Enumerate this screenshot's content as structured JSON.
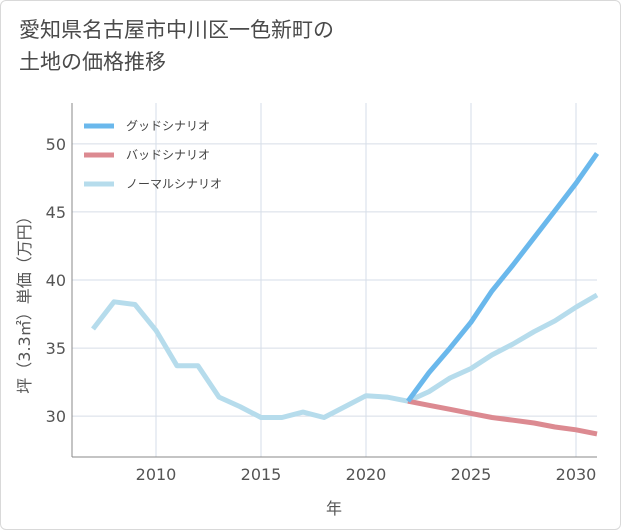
{
  "title_line1": "愛知県名古屋市中川区一色新町の",
  "title_line2": "土地の価格推移",
  "chart_data": {
    "type": "line",
    "xlabel": "年",
    "ylabel": "坪（3.3㎡）単価（万円）",
    "xlim": [
      2006,
      2031
    ],
    "ylim": [
      27,
      53
    ],
    "x_ticks": [
      2010,
      2015,
      2020,
      2025,
      2030
    ],
    "y_ticks": [
      30,
      35,
      40,
      45,
      50
    ],
    "grid": true,
    "legend_position": "top-left",
    "series": [
      {
        "name": "グッドシナリオ",
        "color": "#6ab8ec",
        "x": [
          2022,
          2023,
          2024,
          2025,
          2026,
          2027,
          2028,
          2029,
          2030,
          2031
        ],
        "values": [
          31.1,
          33.2,
          35.0,
          36.9,
          39.2,
          41.1,
          43.1,
          45.1,
          47.1,
          49.3
        ]
      },
      {
        "name": "バッドシナリオ",
        "color": "#dc8a91",
        "x": [
          2022,
          2023,
          2024,
          2025,
          2026,
          2027,
          2028,
          2029,
          2030,
          2031
        ],
        "values": [
          31.1,
          30.8,
          30.5,
          30.2,
          29.9,
          29.7,
          29.5,
          29.2,
          29.0,
          28.7
        ]
      },
      {
        "name": "ノーマルシナリオ",
        "color": "#b6dcec",
        "x": [
          2007,
          2008,
          2009,
          2010,
          2011,
          2012,
          2013,
          2014,
          2015,
          2016,
          2017,
          2018,
          2019,
          2020,
          2021,
          2022,
          2023,
          2024,
          2025,
          2026,
          2027,
          2028,
          2029,
          2030,
          2031
        ],
        "values": [
          36.4,
          38.4,
          38.2,
          36.3,
          33.7,
          33.7,
          31.4,
          30.7,
          29.9,
          29.9,
          30.3,
          29.9,
          30.7,
          31.5,
          31.4,
          31.1,
          31.8,
          32.8,
          33.5,
          34.5,
          35.3,
          36.2,
          37.0,
          38.0,
          38.9
        ]
      }
    ]
  }
}
